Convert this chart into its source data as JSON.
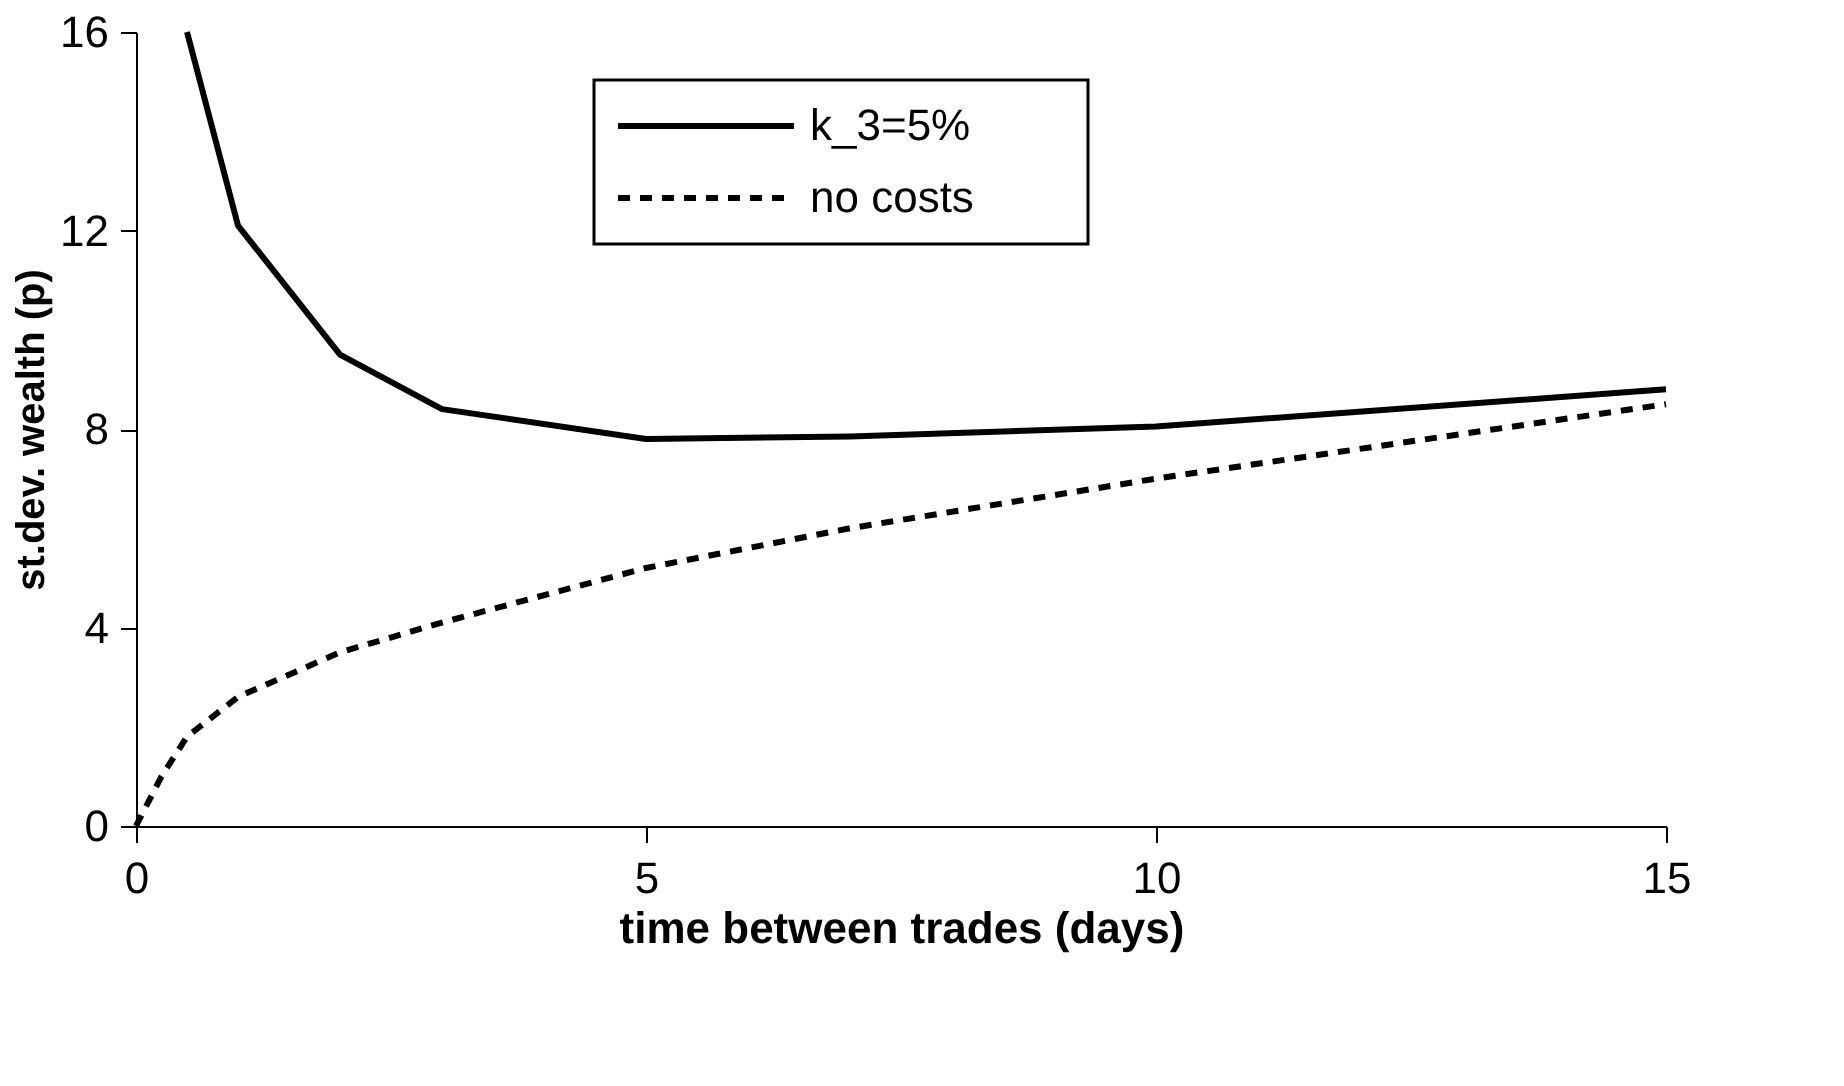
{
  "chart_data": {
    "type": "line",
    "xlabel": "time between trades (days)",
    "ylabel": "st.dev. wealth (p)",
    "xlim": [
      0,
      15
    ],
    "xticks": [
      0,
      5,
      10,
      15
    ],
    "ylim": [
      0,
      16
    ],
    "yticks": [
      0,
      4,
      8,
      12,
      16
    ],
    "grid": false,
    "legend": "top",
    "marker": "none",
    "series": [
      {
        "name": "k_3=5%",
        "color": "#000000",
        "line_style": "solid",
        "x": [
          0.5,
          1,
          2,
          3,
          5,
          7,
          10,
          15
        ],
        "values": [
          16,
          12.1,
          9.5,
          8.4,
          7.8,
          7.85,
          8.05,
          8.8
        ]
      },
      {
        "name": "no costs",
        "color": "#000000",
        "line_style": "dashed",
        "x": [
          0,
          0.25,
          0.5,
          1,
          2,
          3,
          5,
          7,
          10,
          15
        ],
        "values": [
          0,
          1.0,
          1.8,
          2.6,
          3.5,
          4.1,
          5.2,
          6.0,
          7.0,
          8.5
        ]
      }
    ]
  }
}
